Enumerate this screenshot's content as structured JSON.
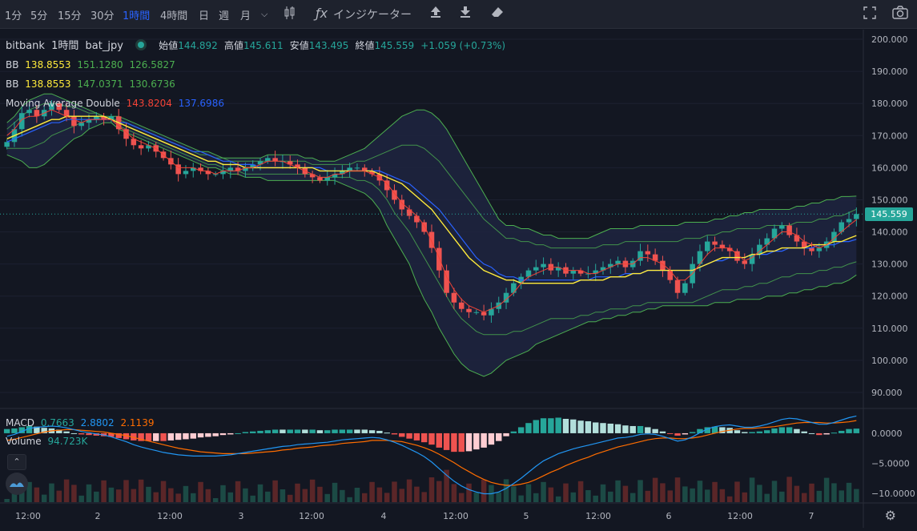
{
  "toolbar": {
    "timeframes": [
      "1分",
      "5分",
      "15分",
      "30分",
      "1時間",
      "4時間",
      "日",
      "週",
      "月"
    ],
    "active_timeframe": "1時間",
    "indicator_label": "インジケーター"
  },
  "legend": {
    "symbol_exchange": "bitbank",
    "symbol_interval": "1時間",
    "symbol_name": "bat_jpy",
    "open_label": "始値",
    "open": "144.892",
    "high_label": "高値",
    "high": "145.611",
    "low_label": "安値",
    "low": "143.495",
    "close_label": "終値",
    "close": "145.559",
    "change": "+1.059 (+0.73%)",
    "bb1_label": "BB",
    "bb1_mid": "138.8553",
    "bb1_upper": "151.1280",
    "bb1_lower": "126.5827",
    "bb2_label": "BB",
    "bb2_mid": "138.8553",
    "bb2_upper": "147.0371",
    "bb2_lower": "130.6736",
    "ma_label": "Moving Average Double",
    "ma_fast": "143.8204",
    "ma_slow": "137.6986",
    "macd_label": "MACD",
    "macd_hist": "0.7663",
    "macd_line": "2.8802",
    "macd_signal": "2.1139",
    "volume_label": "Volume",
    "volume": "94.723K"
  },
  "current_price_tag": "145.559",
  "colors": {
    "up": "#26a69a",
    "down": "#ef5350",
    "bb": "#4caf50",
    "bb_fill": "#1f2440",
    "mid": "#ffeb3b",
    "ma_fast": "#f44336",
    "ma_slow": "#2962ff",
    "macd": "#2196f3",
    "signal": "#ff6d00"
  },
  "chart_data": {
    "type": "candlestick",
    "price_axis": {
      "min": 85,
      "max": 203,
      "ticks": [
        "200.000",
        "190.000",
        "180.000",
        "170.000",
        "160.000",
        "150.000",
        "140.000",
        "130.000",
        "120.000",
        "110.000",
        "100.000",
        "90.000"
      ]
    },
    "macd_axis": {
      "min": -11.5,
      "max": 4,
      "ticks": [
        "0.0000",
        "−5.0000",
        "−10.0000"
      ]
    },
    "time_axis_labels": [
      "12:00",
      "2",
      "12:00",
      "3",
      "12:00",
      "4",
      "12:00",
      "5",
      "12:00",
      "6",
      "12:00",
      "7"
    ],
    "close": [
      168,
      172,
      177,
      178,
      176,
      178,
      180,
      178,
      176,
      173,
      174,
      175,
      176,
      175,
      176,
      172,
      169,
      167,
      166,
      167,
      165,
      163,
      161,
      158,
      159,
      160,
      159,
      158,
      158,
      159,
      160,
      159,
      160,
      161,
      162,
      163,
      162,
      162,
      161,
      160,
      158,
      157,
      156,
      157,
      158,
      159,
      160,
      160,
      159,
      158,
      156,
      153,
      150,
      147,
      145,
      143,
      140,
      135,
      128,
      121,
      118,
      116,
      115,
      115,
      114,
      116,
      118,
      121,
      124,
      126,
      128,
      129,
      130,
      128,
      129,
      127,
      128,
      127,
      127,
      128,
      129,
      130,
      131,
      129,
      131,
      134,
      133,
      131,
      128,
      125,
      121,
      124,
      130,
      134,
      137,
      136,
      135,
      134,
      131,
      130,
      133,
      136,
      138,
      141,
      142,
      139,
      137,
      135,
      134,
      135,
      137,
      140,
      143,
      144,
      145.559
    ],
    "ma_fast": [
      170,
      172,
      175,
      176,
      176,
      177,
      178,
      177,
      176,
      175,
      174,
      175,
      175,
      175,
      175,
      173,
      171,
      169,
      168,
      167,
      166,
      164,
      162,
      160,
      160,
      160,
      159,
      159,
      158,
      159,
      159,
      159,
      160,
      160,
      161,
      162,
      162,
      162,
      161,
      160,
      159,
      158,
      157,
      157,
      158,
      158,
      159,
      159,
      159,
      158,
      157,
      155,
      152,
      149,
      147,
      145,
      142,
      137,
      132,
      126,
      122,
      119,
      117,
      116,
      115,
      116,
      117,
      119,
      121,
      124,
      126,
      127,
      128,
      129,
      129,
      128,
      128,
      128,
      127,
      127,
      128,
      129,
      130,
      130,
      130,
      132,
      132,
      131,
      130,
      128,
      125,
      125,
      127,
      130,
      133,
      135,
      135,
      135,
      133,
      131,
      132,
      134,
      136,
      138,
      140,
      140,
      139,
      137,
      136,
      135,
      136,
      138,
      140,
      142,
      143.8
    ],
    "bb_mid": [
      169,
      170,
      171,
      172,
      173,
      174,
      175,
      175,
      176,
      176,
      176,
      176,
      176,
      176,
      175,
      174,
      173,
      172,
      171,
      170,
      169,
      168,
      167,
      166,
      165,
      164,
      163,
      162,
      162,
      161,
      161,
      161,
      160,
      160,
      160,
      160,
      160,
      160,
      160,
      160,
      160,
      160,
      159,
      159,
      159,
      159,
      159,
      159,
      159,
      159,
      158,
      157,
      156,
      155,
      153,
      151,
      149,
      147,
      144,
      141,
      138,
      135,
      132,
      130,
      128,
      127,
      126,
      125,
      125,
      124,
      124,
      124,
      124,
      124,
      124,
      124,
      124,
      125,
      125,
      125,
      125,
      126,
      126,
      126,
      127,
      127,
      128,
      128,
      128,
      128,
      128,
      128,
      128,
      129,
      130,
      131,
      132,
      132,
      132,
      132,
      133,
      133,
      134,
      134,
      135,
      135,
      135,
      135,
      136,
      136,
      136,
      137,
      137,
      138,
      138.86
    ],
    "ma_slow": [
      168,
      169,
      170,
      171,
      172,
      173,
      174,
      174,
      175,
      175,
      175,
      175,
      175,
      175,
      175,
      174,
      174,
      173,
      172,
      171,
      170,
      169,
      168,
      167,
      166,
      165,
      165,
      164,
      163,
      162,
      162,
      161,
      161,
      161,
      160,
      160,
      160,
      160,
      160,
      160,
      160,
      160,
      160,
      159,
      159,
      159,
      159,
      159,
      159,
      159,
      159,
      158,
      157,
      156,
      155,
      153,
      151,
      149,
      147,
      144,
      141,
      138,
      135,
      132,
      130,
      129,
      127,
      126,
      126,
      125,
      125,
      125,
      125,
      125,
      125,
      125,
      125,
      125,
      125,
      126,
      126,
      126,
      126,
      127,
      127,
      127,
      128,
      128,
      128,
      128,
      128,
      128,
      128,
      129,
      130,
      131,
      131,
      132,
      132,
      132,
      133,
      133,
      133,
      134,
      134,
      135,
      135,
      135,
      135,
      136,
      136,
      136,
      137,
      137,
      137.7
    ],
    "bb_upper1": [
      174,
      176,
      179,
      181,
      182,
      183,
      183,
      182,
      181,
      180,
      179,
      178,
      177,
      176,
      176,
      176,
      175,
      174,
      173,
      172,
      171,
      170,
      169,
      168,
      167,
      166,
      165,
      165,
      164,
      163,
      163,
      163,
      163,
      163,
      163,
      164,
      164,
      164,
      164,
      164,
      163,
      163,
      162,
      162,
      162,
      163,
      164,
      165,
      166,
      168,
      170,
      172,
      174,
      176,
      177,
      178,
      178,
      177,
      175,
      172,
      168,
      164,
      160,
      156,
      152,
      148,
      144,
      142,
      142,
      141,
      141,
      140,
      139,
      139,
      138,
      138,
      138,
      138,
      138,
      139,
      140,
      141,
      141,
      141,
      141,
      142,
      142,
      142,
      142,
      142,
      142,
      143,
      143,
      143,
      143,
      144,
      144,
      145,
      145,
      146,
      146,
      147,
      147,
      147,
      147,
      147,
      148,
      148,
      149,
      149,
      150,
      150,
      151,
      151,
      151.13
    ],
    "bb_upper2": [
      172,
      174,
      176,
      178,
      179,
      180,
      180,
      180,
      179,
      179,
      178,
      177,
      177,
      176,
      175,
      175,
      174,
      173,
      172,
      171,
      170,
      169,
      168,
      167,
      166,
      165,
      164,
      164,
      163,
      163,
      162,
      162,
      162,
      162,
      162,
      162,
      162,
      162,
      162,
      162,
      162,
      161,
      161,
      161,
      161,
      161,
      161,
      162,
      162,
      163,
      164,
      165,
      166,
      167,
      167,
      167,
      166,
      164,
      162,
      159,
      156,
      153,
      150,
      147,
      144,
      142,
      140,
      138,
      138,
      137,
      137,
      136,
      136,
      135,
      135,
      135,
      135,
      135,
      135,
      135,
      136,
      136,
      136,
      137,
      137,
      137,
      137,
      137,
      137,
      137,
      137,
      138,
      138,
      138,
      139,
      139,
      140,
      140,
      141,
      141,
      141,
      141,
      142,
      142,
      142,
      142,
      143,
      143,
      143,
      144,
      144,
      145,
      145,
      146,
      147.04
    ],
    "bb_lower2": [
      166,
      166,
      166,
      166,
      167,
      168,
      170,
      171,
      172,
      173,
      174,
      175,
      175,
      176,
      175,
      173,
      172,
      171,
      170,
      169,
      168,
      167,
      166,
      165,
      164,
      163,
      162,
      161,
      161,
      160,
      159,
      159,
      158,
      158,
      158,
      158,
      158,
      158,
      158,
      158,
      158,
      158,
      157,
      157,
      157,
      157,
      157,
      156,
      156,
      155,
      153,
      150,
      146,
      143,
      140,
      136,
      132,
      128,
      124,
      120,
      116,
      113,
      111,
      109,
      108,
      108,
      108,
      108,
      109,
      109,
      110,
      111,
      112,
      113,
      113,
      113,
      113,
      114,
      114,
      115,
      115,
      116,
      116,
      116,
      117,
      117,
      118,
      118,
      118,
      118,
      118,
      118,
      118,
      119,
      120,
      121,
      122,
      122,
      122,
      123,
      123,
      124,
      124,
      125,
      126,
      126,
      127,
      127,
      127,
      128,
      128,
      129,
      129,
      130,
      130.67
    ],
    "bb_lower1": [
      164,
      163,
      162,
      160,
      160,
      161,
      163,
      165,
      167,
      169,
      170,
      172,
      173,
      174,
      174,
      172,
      171,
      170,
      169,
      168,
      167,
      166,
      165,
      164,
      163,
      162,
      161,
      160,
      160,
      159,
      158,
      158,
      157,
      157,
      157,
      156,
      156,
      156,
      156,
      156,
      156,
      156,
      156,
      156,
      156,
      155,
      154,
      153,
      152,
      150,
      147,
      142,
      138,
      134,
      130,
      124,
      119,
      115,
      110,
      106,
      102,
      99,
      97,
      96,
      95,
      96,
      98,
      100,
      101,
      102,
      103,
      105,
      106,
      107,
      108,
      109,
      110,
      111,
      112,
      112,
      113,
      113,
      114,
      114,
      115,
      115,
      116,
      116,
      117,
      117,
      117,
      117,
      117,
      117,
      117,
      118,
      118,
      118,
      119,
      119,
      119,
      119,
      120,
      120,
      120,
      121,
      121,
      122,
      122,
      123,
      123,
      124,
      124,
      125,
      126.58
    ],
    "macd_line": [
      -0.5,
      -0.2,
      0.3,
      0.8,
      1.0,
      1.1,
      1.2,
      1.1,
      0.9,
      0.6,
      0.3,
      0.1,
      -0.1,
      -0.3,
      -0.6,
      -1.0,
      -1.4,
      -1.9,
      -2.3,
      -2.6,
      -2.9,
      -3.2,
      -3.4,
      -3.6,
      -3.7,
      -3.8,
      -3.8,
      -3.8,
      -3.8,
      -3.7,
      -3.6,
      -3.4,
      -3.2,
      -3.0,
      -2.8,
      -2.6,
      -2.4,
      -2.2,
      -2.1,
      -1.9,
      -1.8,
      -1.7,
      -1.6,
      -1.5,
      -1.3,
      -1.1,
      -1.0,
      -0.9,
      -0.8,
      -0.7,
      -0.8,
      -1.1,
      -1.5,
      -2.0,
      -2.6,
      -3.2,
      -3.9,
      -4.8,
      -5.9,
      -7.0,
      -8.0,
      -8.8,
      -9.4,
      -9.8,
      -10.1,
      -10.1,
      -9.8,
      -9.2,
      -8.4,
      -7.5,
      -6.5,
      -5.5,
      -4.6,
      -4.0,
      -3.4,
      -3.0,
      -2.6,
      -2.3,
      -2.0,
      -1.7,
      -1.4,
      -1.1,
      -0.8,
      -0.7,
      -0.5,
      -0.2,
      -0.1,
      -0.2,
      -0.5,
      -0.9,
      -1.3,
      -1.1,
      -0.6,
      0.1,
      0.7,
      1.1,
      1.3,
      1.4,
      1.2,
      1.0,
      1.0,
      1.2,
      1.5,
      1.9,
      2.3,
      2.5,
      2.4,
      2.1,
      1.8,
      1.5,
      1.5,
      1.8,
      2.2,
      2.6,
      2.88
    ],
    "macd_signal": [
      -1.2,
      -1.0,
      -0.7,
      -0.4,
      -0.1,
      0.2,
      0.4,
      0.5,
      0.6,
      0.6,
      0.5,
      0.4,
      0.3,
      0.2,
      0.0,
      -0.2,
      -0.4,
      -0.7,
      -1.0,
      -1.3,
      -1.6,
      -1.9,
      -2.2,
      -2.5,
      -2.7,
      -2.9,
      -3.1,
      -3.2,
      -3.3,
      -3.4,
      -3.4,
      -3.4,
      -3.4,
      -3.3,
      -3.2,
      -3.1,
      -3.0,
      -2.8,
      -2.7,
      -2.5,
      -2.4,
      -2.3,
      -2.1,
      -2.0,
      -1.9,
      -1.7,
      -1.6,
      -1.5,
      -1.4,
      -1.2,
      -1.2,
      -1.2,
      -1.3,
      -1.4,
      -1.7,
      -2.0,
      -2.4,
      -2.9,
      -3.5,
      -4.2,
      -4.9,
      -5.7,
      -6.4,
      -7.1,
      -7.7,
      -8.2,
      -8.5,
      -8.7,
      -8.7,
      -8.5,
      -8.2,
      -7.7,
      -7.1,
      -6.5,
      -6.0,
      -5.4,
      -4.9,
      -4.4,
      -4.0,
      -3.5,
      -3.1,
      -2.7,
      -2.3,
      -2.0,
      -1.7,
      -1.4,
      -1.1,
      -0.9,
      -0.8,
      -0.8,
      -0.9,
      -0.9,
      -0.8,
      -0.6,
      -0.3,
      0.0,
      0.3,
      0.5,
      0.7,
      0.8,
      0.8,
      0.9,
      1.0,
      1.1,
      1.3,
      1.5,
      1.7,
      1.8,
      1.8,
      1.8,
      1.7,
      1.7,
      1.8,
      1.9,
      2.11
    ],
    "volume_scale_max": 100
  }
}
